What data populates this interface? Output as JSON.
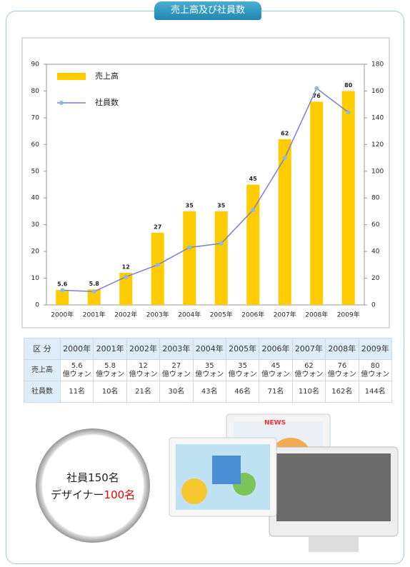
{
  "chart_data": {
    "type": "bar_line",
    "title": "売上高及び社員数",
    "categories": [
      "2000年",
      "2001年",
      "2002年",
      "2003年",
      "2004年",
      "2005年",
      "2006年",
      "2007年",
      "2008年",
      "2009年"
    ],
    "series": [
      {
        "name": "売上高",
        "type": "bar",
        "color": "#ffcc00",
        "values": [
          5.6,
          5.8,
          12,
          27,
          35,
          35,
          45,
          62,
          76,
          80
        ]
      },
      {
        "name": "社員数",
        "type": "line",
        "axis": "y2",
        "color": "#7b7fcf",
        "marker_color": "#8fb8e6",
        "values": [
          11,
          10,
          21,
          30,
          43,
          46,
          71,
          110,
          162,
          144
        ]
      }
    ],
    "ylim": [
      0,
      90
    ],
    "yticks": [
      0,
      10,
      20,
      30,
      40,
      50,
      60,
      70,
      80,
      90
    ],
    "y2lim": [
      0,
      180
    ],
    "y2ticks": [
      0,
      20,
      40,
      60,
      80,
      100,
      120,
      140,
      160,
      180
    ],
    "legend": "top-left",
    "grid": false
  },
  "table": {
    "header": [
      "区 分",
      "2000年",
      "2001年",
      "2002年",
      "2003年",
      "2004年",
      "2005年",
      "2006年",
      "2007年",
      "2008年",
      "2009年"
    ],
    "rows": [
      [
        "売上高",
        [
          "5.6",
          "億ウォン"
        ],
        [
          "5.8",
          "億ウォン"
        ],
        [
          "12",
          "億ウォン"
        ],
        [
          "27",
          "億ウォン"
        ],
        [
          "35",
          "億ウォン"
        ],
        [
          "35",
          "億ウォン"
        ],
        [
          "45",
          "億ウォン"
        ],
        [
          "62",
          "億ウォン"
        ],
        [
          "76",
          "億ウォン"
        ],
        [
          "80",
          "億ウォン"
        ]
      ],
      [
        "社員数",
        "11名",
        "10名",
        "21名",
        "30名",
        "43名",
        "46名",
        "71名",
        "110名",
        "162名",
        "144名"
      ]
    ]
  },
  "badge": {
    "line1": "社員150名",
    "line2_prefix": "デザイナー",
    "line2_highlight": "100名"
  },
  "images": {
    "news": "NEWS"
  }
}
